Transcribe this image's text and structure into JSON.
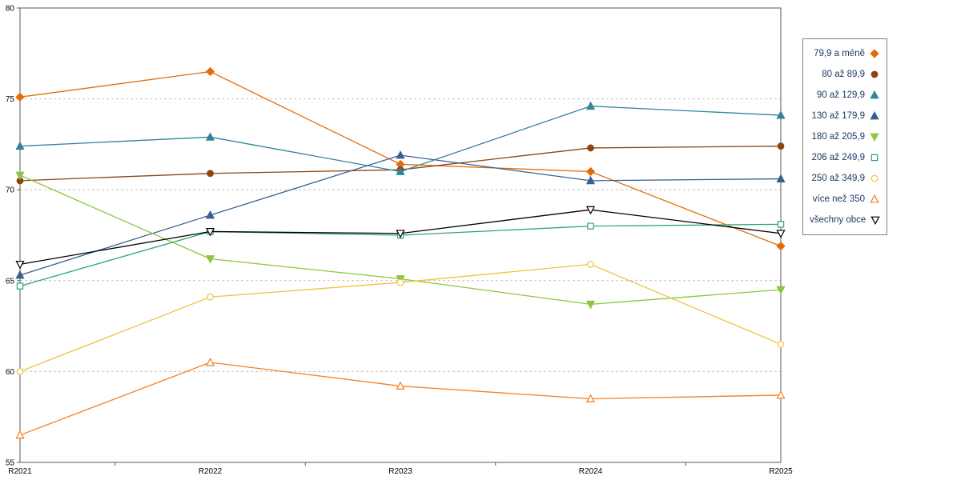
{
  "chart_data": {
    "type": "line",
    "categories": [
      "R2021",
      "R2022",
      "R2023",
      "R2024",
      "R2025"
    ],
    "ylim": [
      55,
      80
    ],
    "yticks": [
      55,
      60,
      65,
      70,
      75,
      80
    ],
    "grid": "horizontal-dashed",
    "grid_color": "#C0C0C0",
    "axis_color": "#595959",
    "legend_position": "right",
    "legend_text_color": "#1F3864",
    "title": "",
    "xlabel": "",
    "ylabel": "",
    "series": [
      {
        "name": "79,9 a méně",
        "marker": "diamond",
        "filled": true,
        "color": "#E36C0A",
        "values": [
          75.1,
          76.5,
          71.4,
          71.0,
          66.9
        ]
      },
      {
        "name": "80 až 89,9",
        "marker": "circle",
        "filled": true,
        "color": "#8B4513",
        "values": [
          70.5,
          70.9,
          71.1,
          72.3,
          72.4
        ]
      },
      {
        "name": "90 až 129,9",
        "marker": "triangle-up",
        "filled": true,
        "color": "#31849B",
        "values": [
          72.4,
          72.9,
          71.0,
          74.6,
          74.1
        ]
      },
      {
        "name": "130 až 179,9",
        "marker": "triangle-up",
        "filled": true,
        "color": "#376092",
        "values": [
          65.3,
          68.6,
          71.9,
          70.5,
          70.6
        ]
      },
      {
        "name": "180 až 205,9",
        "marker": "triangle-down",
        "filled": true,
        "color": "#8CC540",
        "values": [
          70.8,
          66.2,
          65.1,
          63.7,
          64.5
        ]
      },
      {
        "name": "206 až 249,9",
        "marker": "square",
        "filled": false,
        "color": "#2DA579",
        "values": [
          64.7,
          67.7,
          67.5,
          68.0,
          68.1
        ]
      },
      {
        "name": "250 až 349,9",
        "marker": "circle",
        "filled": false,
        "color": "#F0C33C",
        "values": [
          60.0,
          64.1,
          64.9,
          65.9,
          61.5
        ]
      },
      {
        "name": "více než 350",
        "marker": "triangle-up",
        "filled": false,
        "color": "#F57E20",
        "values": [
          56.5,
          60.5,
          59.2,
          58.5,
          58.7
        ]
      },
      {
        "name": "všechny obce",
        "marker": "triangle-down",
        "filled": false,
        "color": "#000000",
        "values": [
          65.9,
          67.7,
          67.6,
          68.9,
          67.6
        ]
      }
    ]
  }
}
